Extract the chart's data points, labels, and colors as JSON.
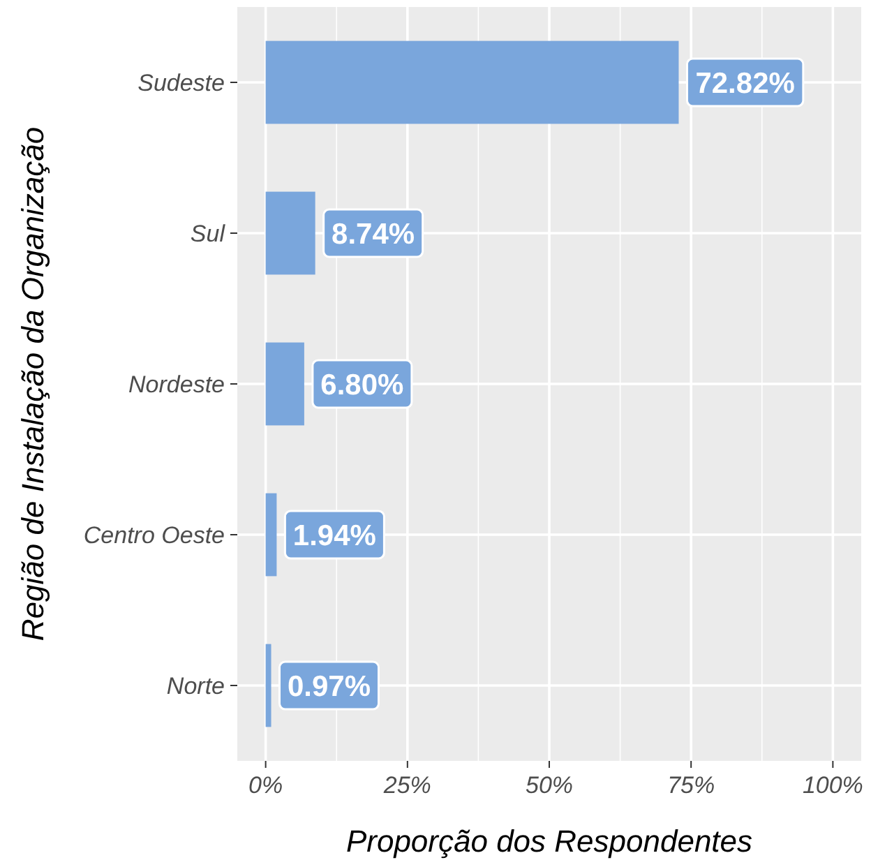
{
  "chart_data": {
    "type": "bar",
    "orientation": "horizontal",
    "xlabel": "Proporção dos Respondentes",
    "ylabel": "Região de Instalação da Organização",
    "categories": [
      "Sudeste",
      "Sul",
      "Nordeste",
      "Centro Oeste",
      "Norte"
    ],
    "values": [
      72.82,
      8.74,
      6.8,
      1.94,
      0.97
    ],
    "value_labels": [
      "72.82%",
      "8.74%",
      "6.80%",
      "1.94%",
      "0.97%"
    ],
    "color": "#7aa6dc",
    "xlim": [
      -5,
      105
    ],
    "xticks": [
      {
        "value": 0,
        "label": "0%"
      },
      {
        "value": 25,
        "label": "25%"
      },
      {
        "value": 50,
        "label": "50%"
      },
      {
        "value": 75,
        "label": "75%"
      },
      {
        "value": 100,
        "label": "100%"
      }
    ],
    "grid": true
  }
}
